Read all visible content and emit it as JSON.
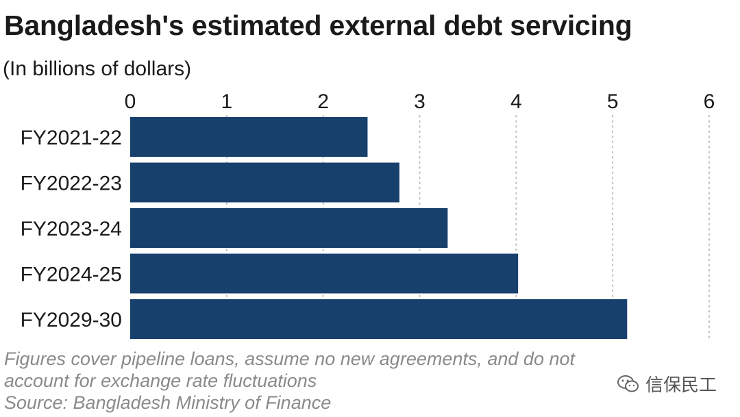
{
  "chart_title": "Bangladesh's estimated external debt servicing",
  "chart_subtitle": "(In billions of dollars)",
  "notes": {
    "line1": "Figures cover pipeline loans, assume no new agreements, and do not",
    "line2": "account for exchange rate fluctuations",
    "source": "Source: Bangladesh Ministry of Finance"
  },
  "watermark": {
    "text": "信保民工",
    "icon": "wechat-icon"
  },
  "colors": {
    "bar": "#17406d",
    "grid": "#bdbdbd",
    "text": "#1a1a1a",
    "note": "#8a8a8a"
  },
  "chart_data": {
    "type": "bar",
    "orientation": "horizontal",
    "title": "Bangladesh's estimated external debt servicing",
    "subtitle": "(In billions of dollars)",
    "categories": [
      "FY2021-22",
      "FY2022-23",
      "FY2023-24",
      "FY2024-25",
      "FY2029-30"
    ],
    "values": [
      2.46,
      2.79,
      3.29,
      4.02,
      5.15
    ],
    "xlim": [
      0,
      6
    ],
    "xticks": [
      0,
      1,
      2,
      3,
      4,
      5,
      6
    ],
    "xaxis_position": "top",
    "grid": "vertical dotted",
    "legend": "none"
  }
}
